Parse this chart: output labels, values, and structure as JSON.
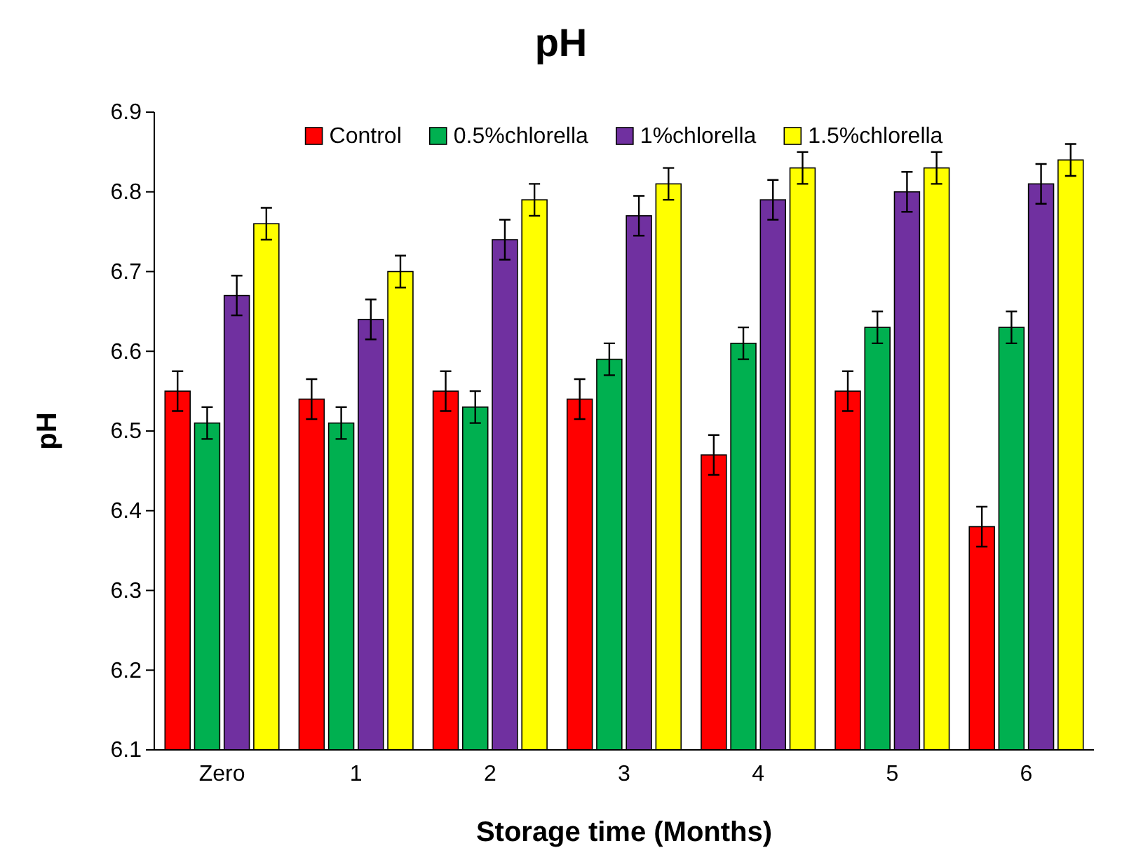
{
  "chart_data": {
    "type": "bar",
    "title": "pH",
    "xlabel": "Storage time (Months)",
    "ylabel": "pH",
    "categories": [
      "Zero",
      "1",
      "2",
      "3",
      "4",
      "5",
      "6"
    ],
    "series": [
      {
        "name": "Control",
        "color": "#ff0000",
        "values": [
          6.55,
          6.54,
          6.55,
          6.54,
          6.47,
          6.55,
          6.38
        ],
        "errors": [
          0.025,
          0.025,
          0.025,
          0.025,
          0.025,
          0.025,
          0.025
        ]
      },
      {
        "name": "0.5%chlorella",
        "color": "#00b050",
        "values": [
          6.51,
          6.51,
          6.53,
          6.59,
          6.61,
          6.63,
          6.63
        ],
        "errors": [
          0.02,
          0.02,
          0.02,
          0.02,
          0.02,
          0.02,
          0.02
        ]
      },
      {
        "name": "1%chlorella",
        "color": "#7030a0",
        "values": [
          6.67,
          6.64,
          6.74,
          6.77,
          6.79,
          6.8,
          6.81
        ],
        "errors": [
          0.025,
          0.025,
          0.025,
          0.025,
          0.025,
          0.025,
          0.025
        ]
      },
      {
        "name": "1.5%chlorella",
        "color": "#ffff00",
        "values": [
          6.76,
          6.7,
          6.79,
          6.81,
          6.83,
          6.83,
          6.84
        ],
        "errors": [
          0.02,
          0.02,
          0.02,
          0.02,
          0.02,
          0.02,
          0.02
        ]
      }
    ],
    "ylim": [
      6.1,
      6.9
    ],
    "yticks": [
      6.1,
      6.2,
      6.3,
      6.4,
      6.5,
      6.6,
      6.7,
      6.8,
      6.9
    ],
    "grid": false,
    "legend": "top"
  }
}
